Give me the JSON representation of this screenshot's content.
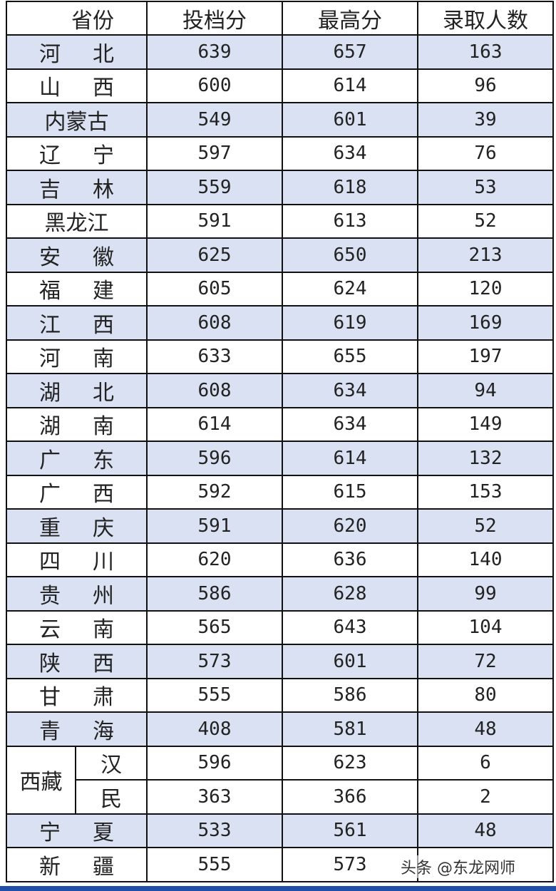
{
  "headers": [
    "省份",
    "投档分",
    "最高分",
    "录取人数"
  ],
  "rows": [
    {
      "province": "河北",
      "toudang": "639",
      "max": "657",
      "count": "163"
    },
    {
      "province": "山西",
      "toudang": "600",
      "max": "614",
      "count": "96"
    },
    {
      "province": "内蒙古",
      "toudang": "549",
      "max": "601",
      "count": "39"
    },
    {
      "province": "辽宁",
      "toudang": "597",
      "max": "634",
      "count": "76"
    },
    {
      "province": "吉林",
      "toudang": "559",
      "max": "618",
      "count": "53"
    },
    {
      "province": "黑龙江",
      "toudang": "591",
      "max": "613",
      "count": "52"
    },
    {
      "province": "安徽",
      "toudang": "625",
      "max": "650",
      "count": "213"
    },
    {
      "province": "福建",
      "toudang": "605",
      "max": "624",
      "count": "120"
    },
    {
      "province": "江西",
      "toudang": "608",
      "max": "619",
      "count": "169"
    },
    {
      "province": "河南",
      "toudang": "633",
      "max": "655",
      "count": "197"
    },
    {
      "province": "湖北",
      "toudang": "608",
      "max": "634",
      "count": "94"
    },
    {
      "province": "湖南",
      "toudang": "614",
      "max": "634",
      "count": "149"
    },
    {
      "province": "广东",
      "toudang": "596",
      "max": "614",
      "count": "132"
    },
    {
      "province": "广西",
      "toudang": "592",
      "max": "615",
      "count": "153"
    },
    {
      "province": "重庆",
      "toudang": "591",
      "max": "620",
      "count": "52"
    },
    {
      "province": "四川",
      "toudang": "620",
      "max": "636",
      "count": "140"
    },
    {
      "province": "贵州",
      "toudang": "586",
      "max": "628",
      "count": "99"
    },
    {
      "province": "云南",
      "toudang": "565",
      "max": "643",
      "count": "104"
    },
    {
      "province": "陕西",
      "toudang": "573",
      "max": "601",
      "count": "72"
    },
    {
      "province": "甘肃",
      "toudang": "555",
      "max": "586",
      "count": "80"
    },
    {
      "province": "青海",
      "toudang": "408",
      "max": "581",
      "count": "48"
    }
  ],
  "tibet": {
    "province": "西藏",
    "sub": [
      {
        "label": "汉",
        "toudang": "596",
        "max": "623",
        "count": "6"
      },
      {
        "label": "民",
        "toudang": "363",
        "max": "366",
        "count": "2"
      }
    ]
  },
  "tail_rows": [
    {
      "province": "宁夏",
      "toudang": "533",
      "max": "561",
      "count": "48"
    },
    {
      "province": "新疆",
      "toudang": "555",
      "max": "573",
      "count": ""
    }
  ],
  "watermark": "头条 @东龙网师",
  "colors": {
    "shade": "#d9e1f2",
    "bar": "#1f4fa8"
  }
}
